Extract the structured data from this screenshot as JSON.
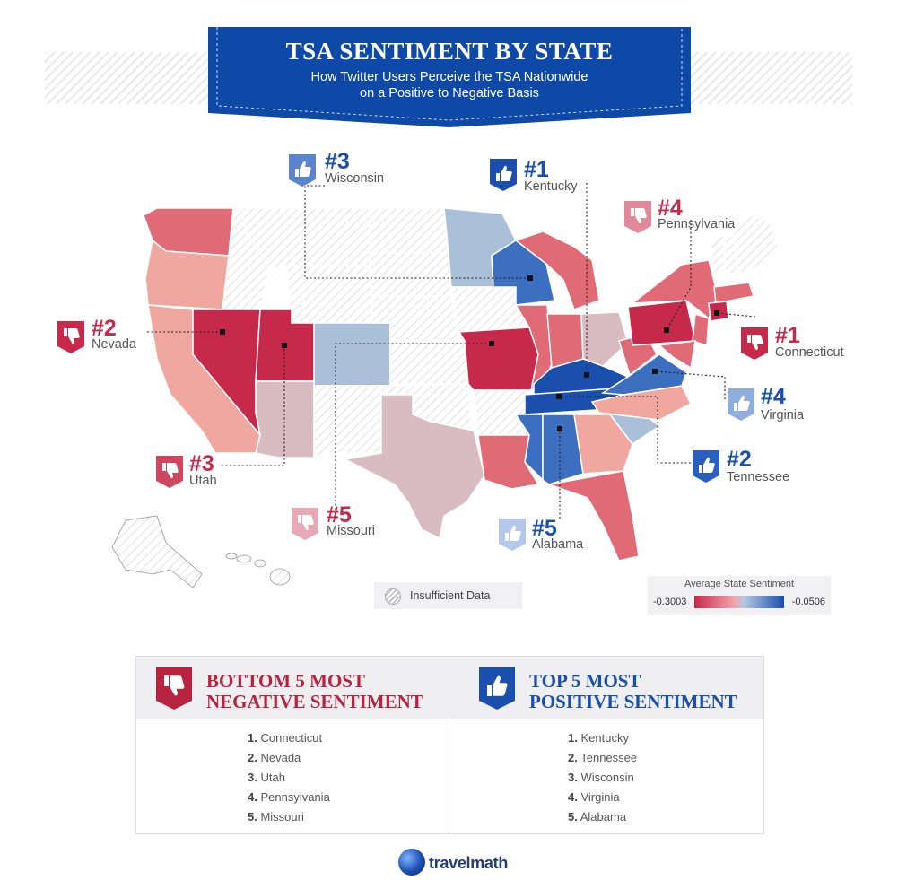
{
  "header": {
    "title": "TSA SENTIMENT BY STATE",
    "subtitle_line1": "How Twitter Users Perceive the TSA Nationwide",
    "subtitle_line2": "on a Positive to Negative Basis"
  },
  "callouts": {
    "neg1": {
      "rank": "#1",
      "state": "Connecticut"
    },
    "neg2": {
      "rank": "#2",
      "state": "Nevada"
    },
    "neg3": {
      "rank": "#3",
      "state": "Utah"
    },
    "neg4": {
      "rank": "#4",
      "state": "Pennsylvania"
    },
    "neg5": {
      "rank": "#5",
      "state": "Missouri"
    },
    "pos1": {
      "rank": "#1",
      "state": "Kentucky"
    },
    "pos2": {
      "rank": "#2",
      "state": "Tennessee"
    },
    "pos3": {
      "rank": "#3",
      "state": "Wisconsin"
    },
    "pos4": {
      "rank": "#4",
      "state": "Virginia"
    },
    "pos5": {
      "rank": "#5",
      "state": "Alabama"
    }
  },
  "legend": {
    "title": "Average State Sentiment",
    "min": "-0.3003",
    "max": "-0.0506",
    "insufficient": "Insufficient Data"
  },
  "colors": {
    "negative_strong": "#c6294a",
    "negative_mid": "#e06a75",
    "negative_light": "#f0a7a0",
    "neutral_pink": "#d9bcc2",
    "positive_light": "#a9c0d8",
    "positive_mid": "#3c6fc0",
    "positive_strong": "#1b4fae",
    "banner": "#0f49a8"
  },
  "bottom5": {
    "heading_line1": "BOTTOM 5 MOST",
    "heading_line2": "NEGATIVE SENTIMENT",
    "items": [
      {
        "num": "1.",
        "name": "Connecticut"
      },
      {
        "num": "2.",
        "name": "Nevada"
      },
      {
        "num": "3.",
        "name": "Utah"
      },
      {
        "num": "4.",
        "name": "Pennsylvania"
      },
      {
        "num": "5.",
        "name": "Missouri"
      }
    ]
  },
  "top5": {
    "heading_line1": "TOP 5 MOST",
    "heading_line2": "POSITIVE SENTIMENT",
    "items": [
      {
        "num": "1.",
        "name": "Kentucky"
      },
      {
        "num": "2.",
        "name": "Tennessee"
      },
      {
        "num": "3.",
        "name": "Wisconsin"
      },
      {
        "num": "4.",
        "name": "Virginia"
      },
      {
        "num": "5.",
        "name": "Alabama"
      }
    ]
  },
  "brand": {
    "name": "travelmath",
    "icon": "globe-plane-icon"
  }
}
